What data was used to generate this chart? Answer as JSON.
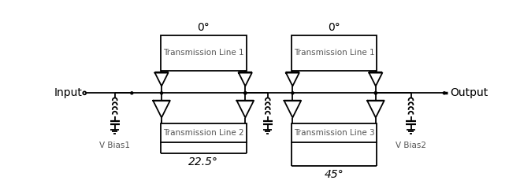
{
  "bg_color": "#ffffff",
  "line_color": "#000000",
  "text_color": "#000000",
  "figsize": [
    6.6,
    2.48
  ],
  "dpi": 100,
  "labels": {
    "input": "Input",
    "output": "Output",
    "vbias1": "V Bias1",
    "vbias2": "V Bias2",
    "tl1_left": "Transmission Line 1",
    "tl2": "Transmission Line 2",
    "tl1_right": "Transmission Line 1",
    "tl3": "Transmission Line 3",
    "angle_top_left": "0°",
    "angle_top_right": "0°",
    "angle_bottom_left": "22.5°",
    "angle_bottom_right": "45°"
  }
}
